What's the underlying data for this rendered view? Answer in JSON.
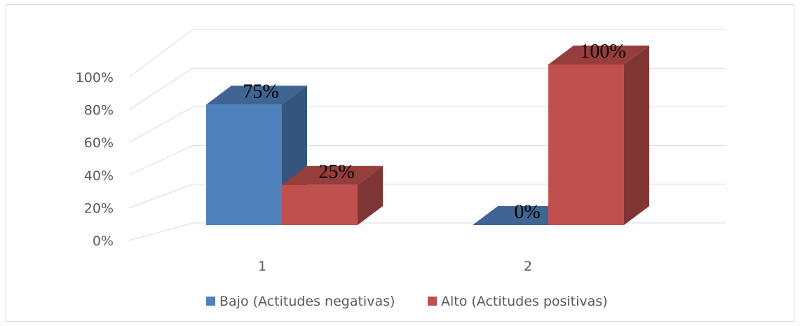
{
  "chart_data": {
    "type": "bar",
    "categories": [
      "1",
      "2"
    ],
    "series": [
      {
        "name": "Bajo (Actitudes negativas)",
        "values": [
          75,
          0
        ],
        "color": "#4f81bd",
        "data_labels": [
          "75%",
          "0%"
        ]
      },
      {
        "name": "Alto (Actitudes positivas)",
        "values": [
          25,
          100
        ],
        "color": "#c0504d",
        "data_labels": [
          "25%",
          "100%"
        ]
      }
    ],
    "y_ticks": [
      "0%",
      "20%",
      "40%",
      "60%",
      "80%",
      "100%"
    ],
    "ylim": [
      0,
      100
    ],
    "grid": true,
    "legend_position": "bottom",
    "style": "3d-clustered-column"
  }
}
